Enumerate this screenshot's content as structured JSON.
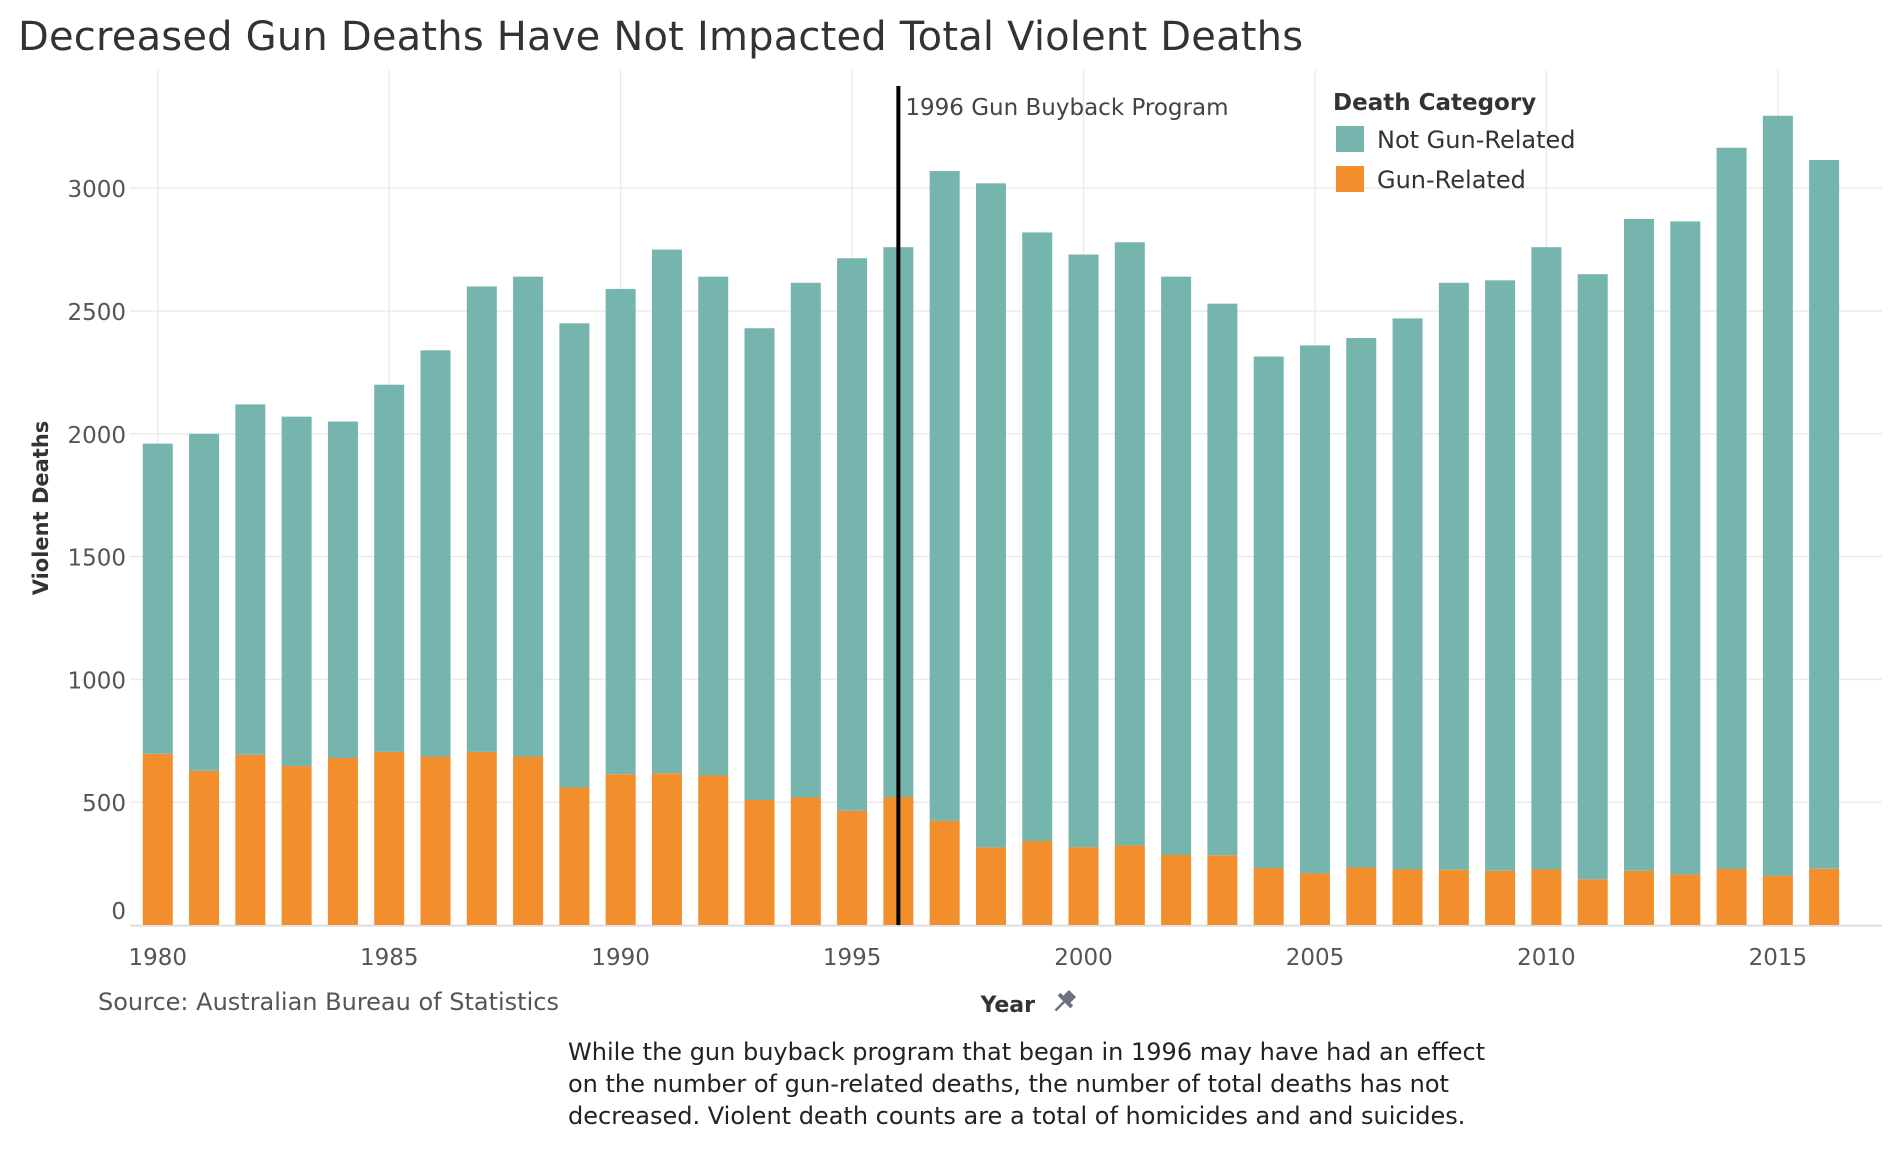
{
  "title": "Decreased Gun Deaths Have Not Impacted Total Violent Deaths",
  "source": "Source: Australian Bureau of Statistics",
  "note_lines": [
    "While the gun buyback program that began in 1996 may have had an effect",
    "on the number of gun-related deaths, the number of total deaths has not",
    "decreased. Violent death counts are a total of homicides and and suicides."
  ],
  "colors": {
    "not_gun_related": "#76b5ae",
    "gun_related": "#f28e2b",
    "reference_line": "#000000",
    "grid": "#ebebeb"
  },
  "chart_data": {
    "type": "bar",
    "stacked": true,
    "xlabel": "Year",
    "xlabel_icon": "pin-icon",
    "ylabel": "Violent Deaths",
    "ylim": [
      0,
      3400
    ],
    "y_ticks": [
      0,
      500,
      1000,
      1500,
      2000,
      2500,
      3000
    ],
    "x_ticks": [
      1980,
      1985,
      1990,
      1995,
      2000,
      2005,
      2010,
      2015
    ],
    "grid": true,
    "legend": {
      "title": "Death Category",
      "placement": "top-right",
      "items": [
        "Not Gun-Related",
        "Gun-Related"
      ]
    },
    "annotation": {
      "x": 1996,
      "label": "1996 Gun Buyback Program"
    },
    "categories": [
      1980,
      1981,
      1982,
      1983,
      1984,
      1985,
      1986,
      1987,
      1988,
      1989,
      1990,
      1991,
      1992,
      1993,
      1994,
      1995,
      1996,
      1997,
      1998,
      1999,
      2000,
      2001,
      2002,
      2003,
      2004,
      2005,
      2006,
      2007,
      2008,
      2009,
      2010,
      2011,
      2012,
      2013,
      2014,
      2015,
      2016
    ],
    "series": [
      {
        "name": "Gun-Related",
        "values": [
          697,
          628,
          693,
          647,
          680,
          705,
          686,
          705,
          686,
          560,
          614,
          618,
          609,
          509,
          519,
          465,
          521,
          424,
          316,
          342,
          317,
          324,
          285,
          284,
          232,
          210,
          234,
          226,
          225,
          221,
          226,
          186,
          221,
          206,
          228,
          200,
          229
        ]
      },
      {
        "name": "Not Gun-Related",
        "values": [
          1263,
          1372,
          1427,
          1423,
          1370,
          1495,
          1654,
          1895,
          1954,
          1890,
          1976,
          2132,
          2031,
          1921,
          2096,
          2250,
          2239,
          2646,
          2704,
          2478,
          2413,
          2456,
          2355,
          2246,
          2083,
          2150,
          2156,
          2244,
          2390,
          2404,
          2534,
          2464,
          2654,
          2659,
          2937,
          3095,
          2886
        ]
      }
    ]
  }
}
